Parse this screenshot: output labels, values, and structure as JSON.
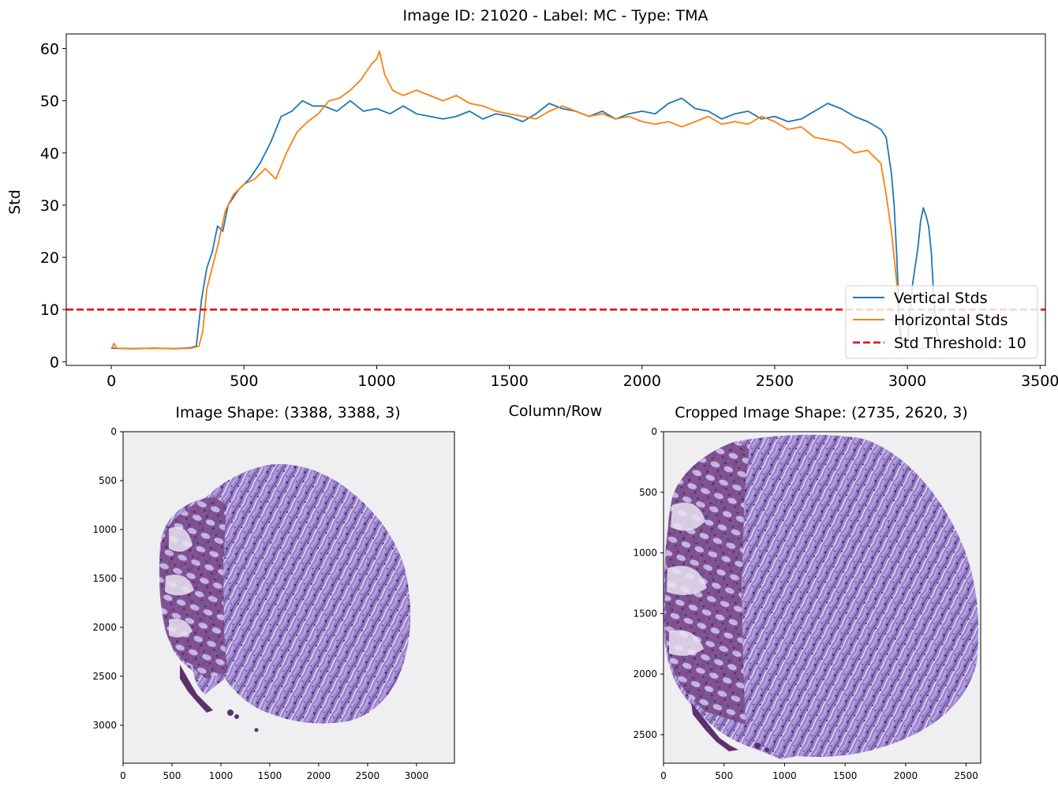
{
  "figure": {
    "suptitle": "Image ID: 21020 - Label: MC - Type: TMA",
    "colors": {
      "vertical": "#1f77b4",
      "horizontal": "#ff7f0e",
      "threshold": "#e8161a",
      "tissue_light": "#a58ad2",
      "tissue_dark": "#5e2f6e",
      "tissue_cells": "#4a2358",
      "background": "#efeef1"
    }
  },
  "chart_data": [
    {
      "type": "line",
      "title": "",
      "xlabel": "Column/Row",
      "ylabel": "Std",
      "xlim": [
        -170,
        3520
      ],
      "ylim": [
        -0.7,
        62.8
      ],
      "xticks": [
        0,
        500,
        1000,
        1500,
        2000,
        2500,
        3000,
        3500
      ],
      "yticks": [
        0,
        10,
        20,
        30,
        40,
        50,
        60
      ],
      "grid": false,
      "legend_position": "bottom-right",
      "series": [
        {
          "name": "Vertical Stds",
          "color": "#1f77b4",
          "x": [
            0,
            80,
            160,
            240,
            300,
            320,
            340,
            360,
            380,
            400,
            420,
            440,
            480,
            520,
            560,
            600,
            640,
            680,
            720,
            760,
            800,
            850,
            900,
            950,
            1000,
            1050,
            1100,
            1150,
            1200,
            1250,
            1300,
            1350,
            1400,
            1450,
            1500,
            1550,
            1600,
            1650,
            1700,
            1750,
            1800,
            1850,
            1900,
            1950,
            2000,
            2050,
            2100,
            2150,
            2200,
            2250,
            2300,
            2350,
            2400,
            2450,
            2500,
            2550,
            2600,
            2650,
            2700,
            2750,
            2800,
            2850,
            2900,
            2920,
            2940,
            2950,
            2960,
            2970,
            2980,
            3000,
            3020,
            3040,
            3050,
            3060,
            3070,
            3080,
            3090,
            3100,
            3110,
            3120
          ],
          "y": [
            2.6,
            2.5,
            2.6,
            2.5,
            2.7,
            3.0,
            12.0,
            18.0,
            21.0,
            26.0,
            25.0,
            30.0,
            33.0,
            35.0,
            38.0,
            42.0,
            47.0,
            48.0,
            50.0,
            49.0,
            49.0,
            48.0,
            50.0,
            48.0,
            48.5,
            47.5,
            49.0,
            47.5,
            47.0,
            46.5,
            47.0,
            48.0,
            46.5,
            47.5,
            47.0,
            46.0,
            47.5,
            49.5,
            48.5,
            48.0,
            47.0,
            48.0,
            46.5,
            47.5,
            48.0,
            47.5,
            49.5,
            50.5,
            48.5,
            48.0,
            46.5,
            47.5,
            48.0,
            46.5,
            47.0,
            46.0,
            46.5,
            48.0,
            49.5,
            48.5,
            47.0,
            46.0,
            44.5,
            43.0,
            36.0,
            30.0,
            20.0,
            8.0,
            3.0,
            4.0,
            15.0,
            22.0,
            27.0,
            29.5,
            28.0,
            26.0,
            21.0,
            12.0,
            6.0,
            4.0
          ]
        },
        {
          "name": "Horizontal Stds",
          "color": "#ff7f0e",
          "x": [
            0,
            10,
            20,
            80,
            160,
            240,
            300,
            330,
            345,
            360,
            380,
            400,
            430,
            460,
            500,
            540,
            580,
            620,
            660,
            700,
            740,
            780,
            820,
            860,
            900,
            940,
            980,
            1000,
            1010,
            1030,
            1060,
            1100,
            1150,
            1200,
            1250,
            1300,
            1350,
            1400,
            1450,
            1500,
            1550,
            1600,
            1650,
            1700,
            1750,
            1800,
            1850,
            1900,
            1950,
            2000,
            2050,
            2100,
            2150,
            2200,
            2250,
            2300,
            2350,
            2400,
            2450,
            2500,
            2550,
            2600,
            2650,
            2700,
            2750,
            2800,
            2850,
            2900,
            2920,
            2940,
            2950,
            2960,
            2970,
            2980,
            3000,
            3050,
            3100,
            3150,
            3200,
            3250,
            3300,
            3330
          ],
          "y": [
            2.5,
            3.5,
            2.6,
            2.5,
            2.6,
            2.5,
            2.6,
            3.0,
            6.0,
            14.0,
            18.0,
            22.0,
            29.0,
            32.0,
            34.0,
            35.0,
            37.0,
            35.0,
            40.0,
            44.0,
            46.0,
            47.5,
            50.0,
            50.5,
            52.0,
            54.0,
            57.0,
            58.0,
            59.5,
            55.0,
            52.0,
            51.0,
            52.0,
            51.0,
            50.0,
            51.0,
            49.5,
            49.0,
            48.0,
            47.5,
            47.0,
            46.5,
            48.0,
            49.0,
            48.0,
            47.0,
            47.5,
            46.5,
            47.0,
            46.0,
            45.5,
            46.0,
            45.0,
            46.0,
            47.0,
            45.5,
            46.0,
            45.5,
            47.0,
            46.0,
            44.5,
            45.0,
            43.0,
            42.5,
            42.0,
            40.0,
            40.5,
            38.0,
            32.0,
            25.0,
            20.0,
            15.0,
            6.0,
            3.0,
            2.8,
            2.6,
            2.7,
            2.6,
            2.8,
            2.6,
            2.7,
            2.6
          ]
        }
      ],
      "threshold": {
        "name": "Std Threshold: 10",
        "value": 10,
        "color": "#e8161a"
      },
      "legend": [
        "Vertical Stds",
        "Horizontal Stds",
        "Std Threshold: 10"
      ]
    },
    {
      "type": "image",
      "title": "Image Shape: (3388, 3388, 3)",
      "xlim": [
        0,
        3388
      ],
      "ylim": [
        3388,
        0
      ],
      "xticks": [
        0,
        500,
        1000,
        1500,
        2000,
        2500,
        3000
      ],
      "yticks": [
        0,
        500,
        1000,
        1500,
        2000,
        2500,
        3000
      ]
    },
    {
      "type": "image",
      "title": "Cropped Image Shape: (2735, 2620, 3)",
      "xlim": [
        0,
        2620
      ],
      "ylim": [
        2735,
        0
      ],
      "xticks": [
        0,
        500,
        1000,
        1500,
        2000,
        2500
      ],
      "yticks": [
        0,
        500,
        1000,
        1500,
        2000,
        2500
      ]
    }
  ]
}
